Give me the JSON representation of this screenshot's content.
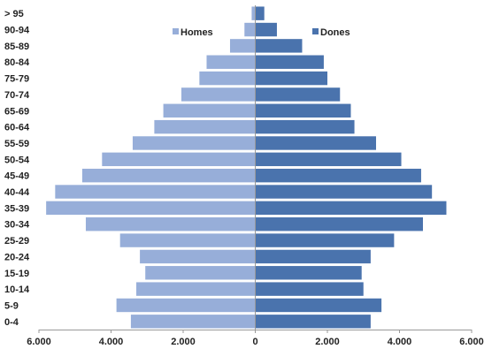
{
  "chart_data": {
    "type": "bar",
    "orientation": "horizontal-diverging",
    "categories": [
      "0-4",
      "5-9",
      "10-14",
      "15-19",
      "20-24",
      "25-29",
      "30-34",
      "35-39",
      "40-44",
      "45-49",
      "50-54",
      "55-59",
      "60-64",
      "65-69",
      "70-74",
      "75-79",
      "80-84",
      "85-89",
      "90-94",
      "> 95"
    ],
    "series": [
      {
        "name": "Homes",
        "color": "#97aed9",
        "values": [
          3450,
          3850,
          3300,
          3050,
          3200,
          3750,
          4700,
          5800,
          5550,
          4800,
          4250,
          3400,
          2800,
          2550,
          2050,
          1550,
          1350,
          700,
          300,
          100
        ]
      },
      {
        "name": "Dones",
        "color": "#4a73ad",
        "values": [
          3200,
          3500,
          3000,
          2950,
          3200,
          3850,
          4650,
          5300,
          4900,
          4600,
          4050,
          3350,
          2750,
          2650,
          2350,
          2000,
          1900,
          1300,
          600,
          250
        ]
      }
    ],
    "xlim": [
      -6000,
      6000
    ],
    "xticks": [
      {
        "value": -6000,
        "label": "6.000"
      },
      {
        "value": -4000,
        "label": "4.000"
      },
      {
        "value": -2000,
        "label": "2.000"
      },
      {
        "value": 0,
        "label": "0"
      },
      {
        "value": 2000,
        "label": "2.000"
      },
      {
        "value": 4000,
        "label": "4.000"
      },
      {
        "value": 6000,
        "label": "6.000"
      }
    ],
    "grid": false,
    "legend": "top-center",
    "title": "",
    "xlabel": "",
    "ylabel": ""
  }
}
